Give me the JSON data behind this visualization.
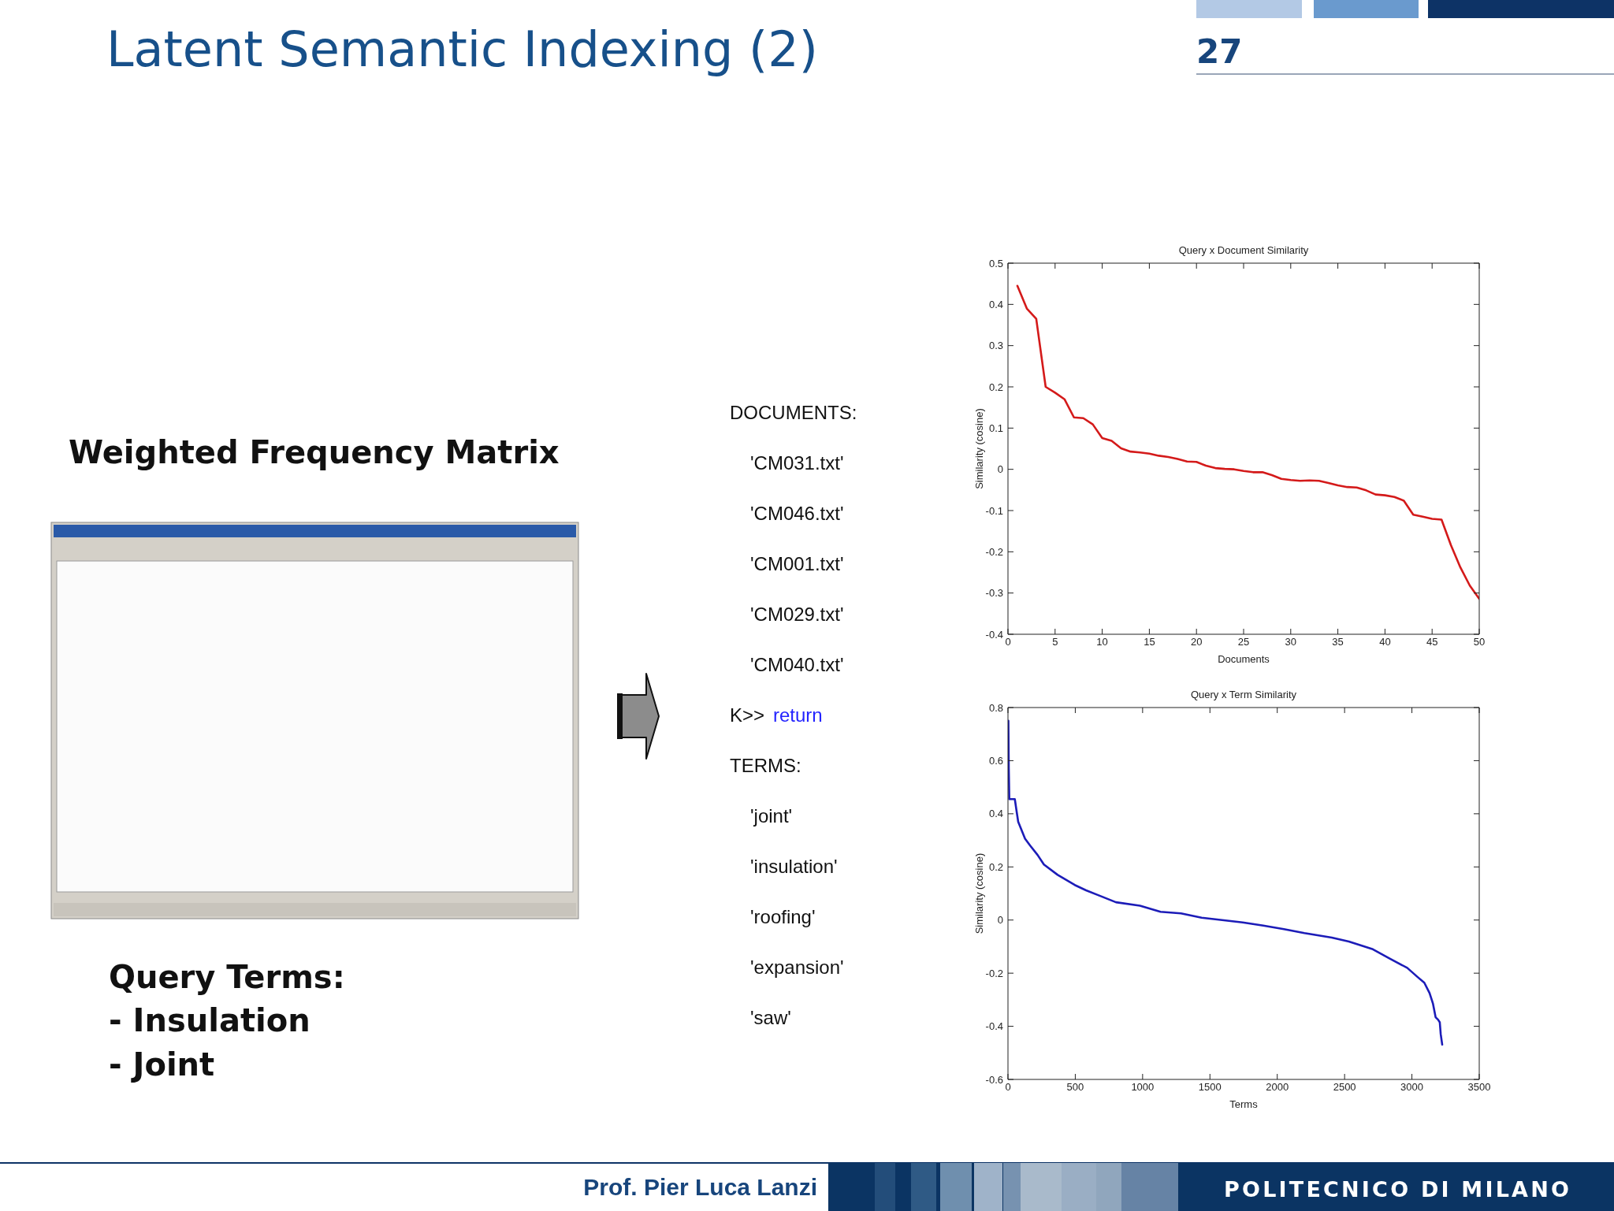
{
  "chart_data": [
    {
      "type": "other",
      "title": "Latent Semantic Indexing (2)",
      "annotations": [
        "27",
        "Weighted Frequency Matrix",
        "Query Terms:",
        "- Insulation",
        "- Joint",
        "DOCUMENTS:",
        "'CM031.txt'",
        "'CM046.txt'",
        "'CM001.txt'",
        "'CM029.txt'",
        "'CM040.txt'",
        "K>>",
        "return",
        "TERMS:",
        "'joint'",
        "'insulation'",
        "'roofing'",
        "'expansion'",
        "'saw'",
        "Prof. Pier Luca Lanzi",
        "POLITECNICO DI MILANO"
      ]
    },
    {
      "type": "line",
      "title": "Query x Document Similarity",
      "xlabel": "Documents",
      "ylabel": "Similarity (cosine)",
      "x": [
        1,
        2,
        3,
        4,
        5,
        6,
        7,
        8,
        9,
        10,
        11,
        12,
        13,
        14,
        15,
        16,
        17,
        18,
        19,
        20,
        21,
        22,
        23,
        24,
        25,
        26,
        27,
        28,
        29,
        30,
        31,
        32,
        33,
        34,
        35,
        36,
        37,
        38,
        39,
        40,
        41,
        42,
        43,
        44,
        45,
        46,
        47,
        48,
        49,
        50
      ],
      "series": [
        {
          "color": "#d41a1a",
          "values": [
            0.445,
            0.39,
            0.365,
            0.2,
            0.186,
            0.17,
            0.126,
            0.124,
            0.109,
            0.076,
            0.069,
            0.051,
            0.043,
            0.041,
            0.038,
            0.033,
            0.03,
            0.025,
            0.019,
            0.018,
            0.009,
            0.003,
            0.001,
            0,
            -0.004,
            -0.007,
            -0.007,
            -0.014,
            -0.023,
            -0.026,
            -0.028,
            -0.027,
            -0.028,
            -0.033,
            -0.039,
            -0.043,
            -0.044,
            -0.051,
            -0.061,
            -0.063,
            -0.067,
            -0.076,
            -0.11,
            -0.115,
            -0.12,
            -0.122,
            -0.184,
            -0.238,
            -0.282,
            -0.314
          ]
        }
      ],
      "xlim": [
        0,
        50
      ],
      "ylim": [
        -0.4,
        0.5
      ],
      "xticks": [
        0,
        5,
        10,
        15,
        20,
        25,
        30,
        35,
        40,
        45,
        50
      ],
      "yticks": [
        -0.4,
        -0.3,
        -0.2,
        -0.1,
        0,
        0.1,
        0.2,
        0.3,
        0.4,
        0.5
      ],
      "marker": "none",
      "line_style": "solid"
    },
    {
      "type": "line",
      "title": "Query x Term Similarity",
      "xlabel": "Terms",
      "ylabel": "Similarity (cosine)",
      "x": [
        3,
        6,
        10,
        51,
        64,
        76,
        127,
        165,
        220,
        267,
        369,
        496,
        580,
        674,
        802,
        980,
        1133,
        1285,
        1438,
        1591,
        1743,
        1896,
        2049,
        2201,
        2405,
        2532,
        2710,
        2838,
        2965,
        3041,
        3092,
        3131,
        3156,
        3176,
        3194,
        3207,
        3214,
        3225
      ],
      "series": [
        {
          "color": "#1c1cb8",
          "values": [
            0.75,
            0.57,
            0.455,
            0.455,
            0.41,
            0.37,
            0.306,
            0.28,
            0.245,
            0.209,
            0.17,
            0.132,
            0.112,
            0.093,
            0.067,
            0.054,
            0.031,
            0.025,
            0.009,
            0,
            -0.009,
            -0.021,
            -0.034,
            -0.049,
            -0.066,
            -0.081,
            -0.11,
            -0.146,
            -0.18,
            -0.214,
            -0.236,
            -0.275,
            -0.314,
            -0.366,
            -0.375,
            -0.385,
            -0.43,
            -0.469
          ]
        }
      ],
      "xlim": [
        0,
        3500
      ],
      "ylim": [
        -0.6,
        0.8
      ],
      "xticks": [
        0,
        500,
        1000,
        1500,
        2000,
        2500,
        3000,
        3500
      ],
      "yticks": [
        -0.6,
        -0.4,
        -0.2,
        0,
        0.2,
        0.4,
        0.6,
        0.8
      ],
      "marker": "none",
      "line_style": "solid"
    }
  ]
}
